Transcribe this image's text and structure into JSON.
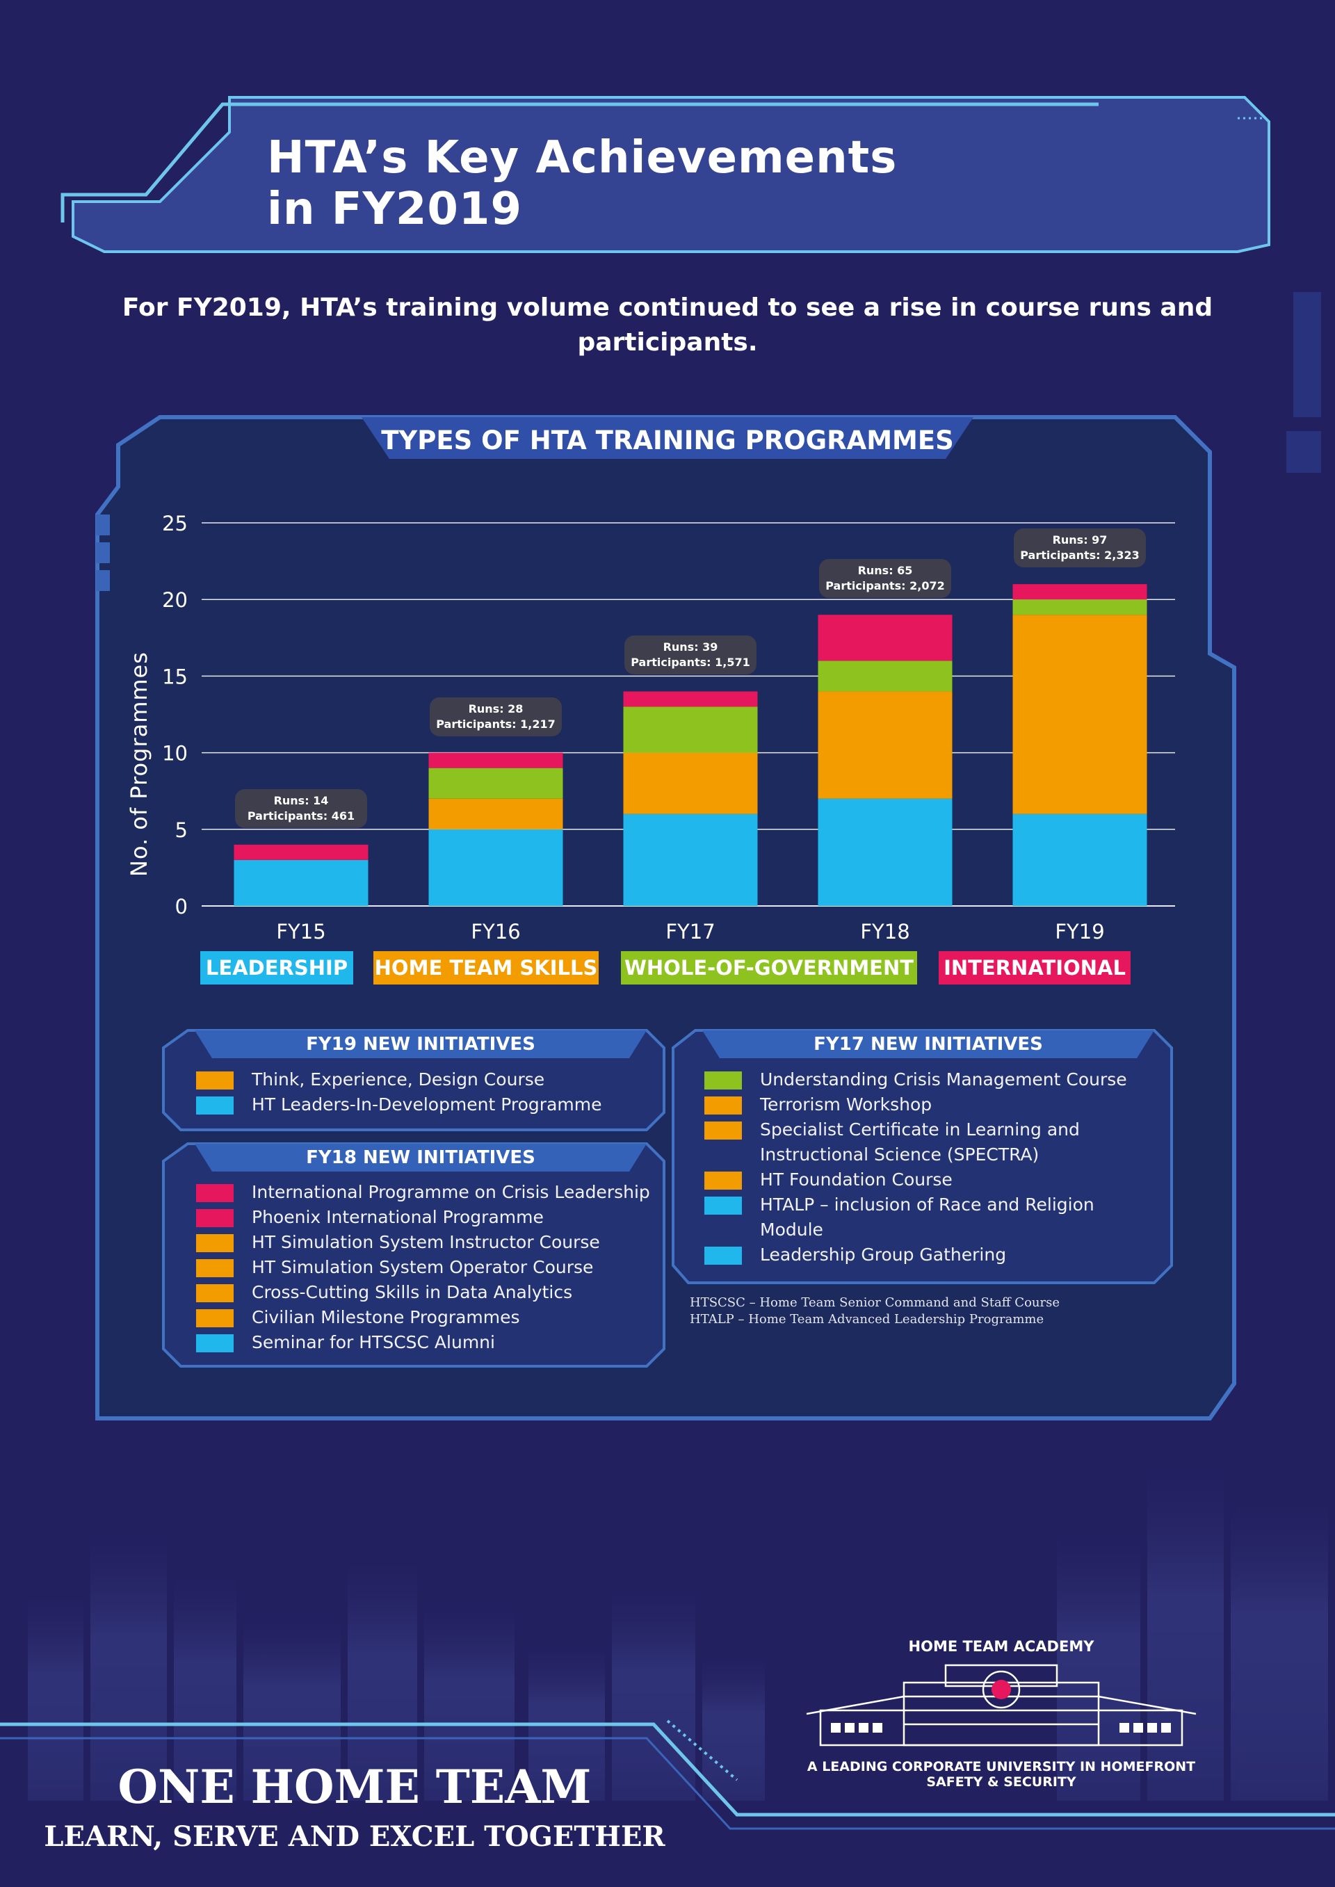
{
  "header": {
    "title_line1": "HTA’s Key Achievements",
    "title_line2": "in FY2019",
    "intro": "For FY2019, HTA’s training volume continued to see a rise in course runs and participants."
  },
  "chart_data": {
    "type": "bar",
    "title": "TYPES OF HTA TRAINING PROGRAMMES",
    "ylabel": "No. of Programmes",
    "xlabel": "",
    "ylim": [
      0,
      25
    ],
    "yticks": [
      0,
      5,
      10,
      15,
      20,
      25
    ],
    "stacked": true,
    "grid": true,
    "categories": [
      "FY15",
      "FY16",
      "FY17",
      "FY18",
      "FY19"
    ],
    "series": [
      {
        "name": "LEADERSHIP",
        "color": "#20b8ec",
        "values": [
          3,
          5,
          6,
          7,
          6
        ]
      },
      {
        "name": "HOME TEAM SKILLS",
        "color": "#f39c00",
        "values": [
          0,
          2,
          4,
          7,
          13
        ]
      },
      {
        "name": "WHOLE-OF-GOVERNMENT",
        "color": "#8dc21f",
        "values": [
          0,
          2,
          3,
          2,
          1
        ]
      },
      {
        "name": "INTERNATIONAL",
        "color": "#e6175c",
        "values": [
          1,
          1,
          1,
          3,
          1
        ]
      }
    ],
    "annotations": [
      {
        "runs": "Runs: 14",
        "participants": "Participants: 461"
      },
      {
        "runs": "Runs: 28",
        "participants": "Participants: 1,217"
      },
      {
        "runs": "Runs: 39",
        "participants": "Participants: 1,571"
      },
      {
        "runs": "Runs: 65",
        "participants": "Participants: 2,072"
      },
      {
        "runs": "Runs: 97",
        "participants": "Participants: 2,323"
      }
    ],
    "legend_position": "bottom"
  },
  "panels": {
    "fy19": {
      "title": "FY19 NEW INITIATIVES",
      "items": [
        {
          "label": "Think, Experience, Design Course",
          "color": "#f39c00"
        },
        {
          "label": "HT Leaders-In-Development Programme",
          "color": "#20b8ec"
        }
      ]
    },
    "fy18": {
      "title": "FY18 NEW INITIATIVES",
      "items": [
        {
          "label": "International Programme on Crisis Leadership",
          "color": "#e6175c"
        },
        {
          "label": "Phoenix International Programme",
          "color": "#e6175c"
        },
        {
          "label": "HT Simulation System Instructor Course",
          "color": "#f39c00"
        },
        {
          "label": "HT Simulation System Operator Course",
          "color": "#f39c00"
        },
        {
          "label": "Cross-Cutting Skills in Data Analytics",
          "color": "#f39c00"
        },
        {
          "label": "Civilian Milestone Programmes",
          "color": "#f39c00"
        },
        {
          "label": "Seminar for HTSCSC Alumni",
          "color": "#20b8ec"
        }
      ]
    },
    "fy17": {
      "title": "FY17 NEW INITIATIVES",
      "items": [
        {
          "label": "Understanding Crisis Management Course",
          "color": "#8dc21f"
        },
        {
          "label": "Terrorism Workshop",
          "color": "#f39c00"
        },
        {
          "label": "Specialist Certificate in Learning and",
          "label2": "Instructional Science (SPECTRA)",
          "color": "#f39c00"
        },
        {
          "label": "HT Foundation Course",
          "color": "#f39c00"
        },
        {
          "label": "HTALP – inclusion of Race and Religion",
          "label2": "Module",
          "color": "#20b8ec"
        },
        {
          "label": "Leadership Group Gathering",
          "color": "#20b8ec"
        }
      ]
    }
  },
  "footnotes": {
    "line1": "HTSCSC – Home Team Senior Command and Staff Course",
    "line2": "HTALP – Home Team Advanced Leadership Programme"
  },
  "footer": {
    "slogan1": "ONE HOME TEAM",
    "slogan2": "LEARN, SERVE AND EXCEL TOGETHER",
    "org_name": "HOME TEAM ACADEMY",
    "org_tagline": "A LEADING CORPORATE UNIVERSITY IN HOMEFRONT SAFETY & SECURITY"
  }
}
